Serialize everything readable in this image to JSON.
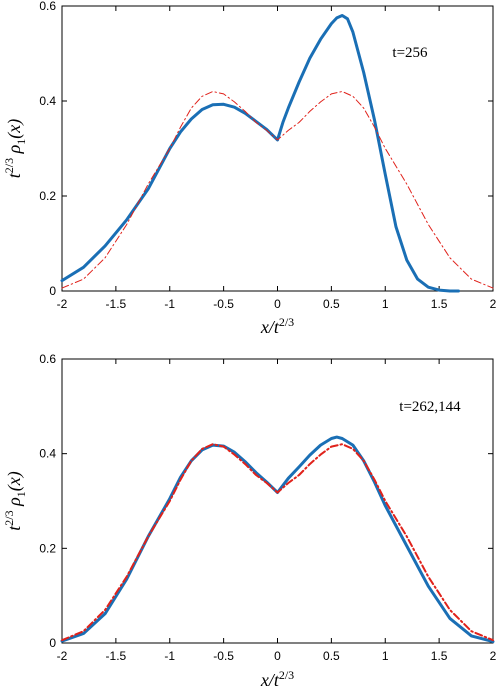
{
  "chart_data": [
    {
      "type": "line",
      "annotation": "t=256",
      "xlabel": "x/t^{2/3}",
      "ylabel": "t^{2/3} ρ_1(x)",
      "xlim": [
        -2,
        2
      ],
      "ylim": [
        0,
        0.6
      ],
      "xticks": [
        "-2",
        "-1.5",
        "-1",
        "-0.5",
        "0",
        "0.5",
        "1",
        "1.5",
        "2"
      ],
      "yticks": [
        "0",
        "0.2",
        "0.4",
        "0.6"
      ],
      "grid": false,
      "colors": {
        "measured": "#1a6fb5",
        "theory": "#e0221b"
      },
      "series": [
        {
          "style": "solid",
          "x": [
            -2.0,
            -1.8,
            -1.6,
            -1.4,
            -1.2,
            -1.0,
            -0.9,
            -0.8,
            -0.7,
            -0.6,
            -0.5,
            -0.4,
            -0.3,
            -0.2,
            -0.1,
            0.0,
            0.05,
            0.1,
            0.2,
            0.3,
            0.4,
            0.5,
            0.55,
            0.6,
            0.65,
            0.7,
            0.8,
            0.9,
            1.0,
            1.1,
            1.2,
            1.3,
            1.4,
            1.5,
            1.6,
            1.68
          ],
          "y": [
            0.022,
            0.05,
            0.095,
            0.15,
            0.215,
            0.3,
            0.335,
            0.362,
            0.382,
            0.392,
            0.393,
            0.387,
            0.374,
            0.357,
            0.34,
            0.318,
            0.355,
            0.385,
            0.44,
            0.49,
            0.53,
            0.563,
            0.575,
            0.58,
            0.573,
            0.545,
            0.46,
            0.36,
            0.245,
            0.135,
            0.065,
            0.025,
            0.008,
            0.002,
            0.0,
            0.0
          ]
        },
        {
          "style": "dashdot",
          "x": [
            -2.0,
            -1.8,
            -1.6,
            -1.4,
            -1.2,
            -1.0,
            -0.9,
            -0.8,
            -0.7,
            -0.6,
            -0.5,
            -0.4,
            -0.3,
            -0.2,
            -0.1,
            0.0,
            0.1,
            0.2,
            0.3,
            0.4,
            0.5,
            0.6,
            0.7,
            0.8,
            0.9,
            1.0,
            1.2,
            1.4,
            1.6,
            1.8,
            2.0
          ],
          "y": [
            0.006,
            0.025,
            0.07,
            0.14,
            0.225,
            0.3,
            0.345,
            0.385,
            0.41,
            0.42,
            0.415,
            0.398,
            0.378,
            0.355,
            0.338,
            0.318,
            0.338,
            0.355,
            0.378,
            0.398,
            0.415,
            0.42,
            0.41,
            0.385,
            0.345,
            0.3,
            0.225,
            0.14,
            0.07,
            0.025,
            0.006
          ]
        }
      ]
    },
    {
      "type": "line",
      "annotation": "t=262,144",
      "xlabel": "x/t^{2/3}",
      "ylabel": "t^{2/3} ρ_1(x)",
      "xlim": [
        -2,
        2
      ],
      "ylim": [
        0,
        0.6
      ],
      "xticks": [
        "-2",
        "-1.5",
        "-1",
        "-0.5",
        "0",
        "0.5",
        "1",
        "1.5",
        "2"
      ],
      "yticks": [
        "0",
        "0.2",
        "0.4",
        "0.6"
      ],
      "grid": false,
      "colors": {
        "measured": "#1a6fb5",
        "theory": "#e0221b"
      },
      "series": [
        {
          "style": "solid",
          "x": [
            -2.0,
            -1.8,
            -1.6,
            -1.4,
            -1.2,
            -1.0,
            -0.9,
            -0.8,
            -0.7,
            -0.6,
            -0.5,
            -0.4,
            -0.3,
            -0.2,
            -0.1,
            0.0,
            0.1,
            0.2,
            0.3,
            0.4,
            0.5,
            0.55,
            0.6,
            0.7,
            0.8,
            0.9,
            1.0,
            1.2,
            1.4,
            1.6,
            1.8,
            2.0
          ],
          "y": [
            0.004,
            0.02,
            0.062,
            0.135,
            0.225,
            0.305,
            0.35,
            0.385,
            0.408,
            0.418,
            0.416,
            0.403,
            0.383,
            0.36,
            0.34,
            0.318,
            0.348,
            0.372,
            0.397,
            0.418,
            0.432,
            0.435,
            0.432,
            0.418,
            0.385,
            0.34,
            0.29,
            0.205,
            0.12,
            0.052,
            0.015,
            0.003
          ]
        },
        {
          "style": "dashdot",
          "x": [
            -2.0,
            -1.8,
            -1.6,
            -1.4,
            -1.2,
            -1.0,
            -0.9,
            -0.8,
            -0.7,
            -0.6,
            -0.5,
            -0.4,
            -0.3,
            -0.2,
            -0.1,
            0.0,
            0.1,
            0.2,
            0.3,
            0.4,
            0.5,
            0.6,
            0.7,
            0.8,
            0.9,
            1.0,
            1.2,
            1.4,
            1.6,
            1.8,
            2.0
          ],
          "y": [
            0.006,
            0.025,
            0.07,
            0.14,
            0.225,
            0.3,
            0.345,
            0.385,
            0.41,
            0.42,
            0.415,
            0.398,
            0.378,
            0.355,
            0.338,
            0.318,
            0.338,
            0.355,
            0.378,
            0.398,
            0.415,
            0.42,
            0.41,
            0.385,
            0.345,
            0.3,
            0.225,
            0.14,
            0.07,
            0.025,
            0.006
          ]
        }
      ]
    }
  ]
}
